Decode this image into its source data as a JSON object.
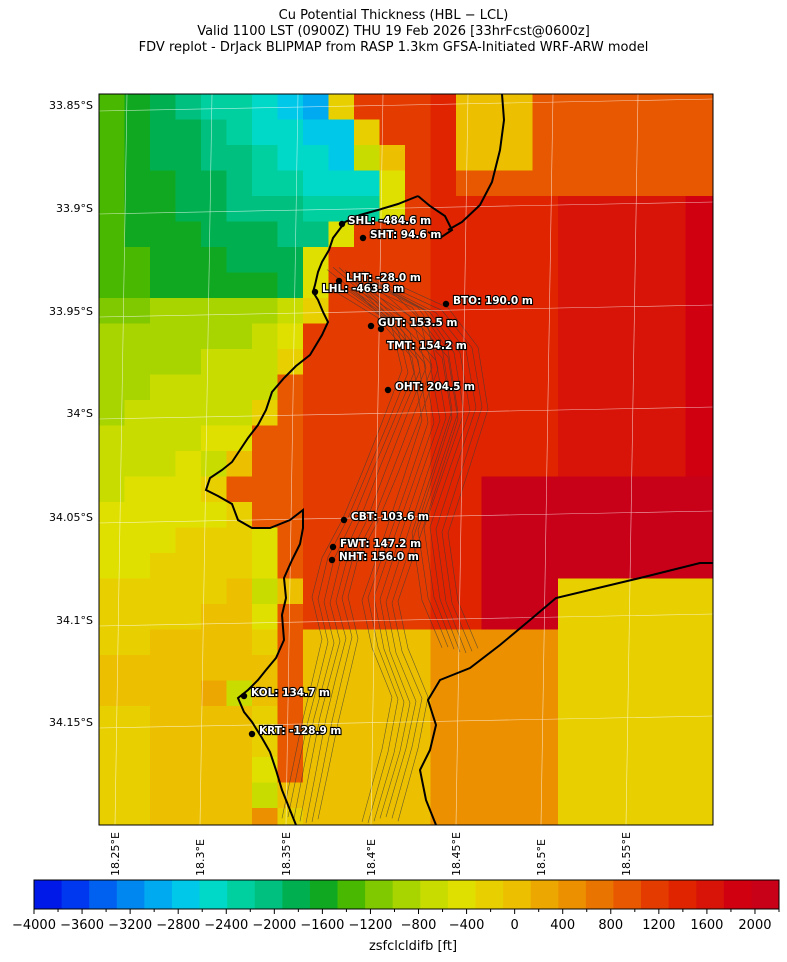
{
  "title": {
    "line1": "Cu Potential Thickness (HBL − LCL)",
    "line2": "Valid 1100 LST (0900Z) THU 19 Feb 2026 [33hrFcst@0600z]",
    "line3": "FDV replot - DrJack BLIPMAP from RASP 1.3km GFSA-Initiated WRF-ARW model"
  },
  "map": {
    "lat_labels": [
      "33.85°S",
      "33.9°S",
      "33.95°S",
      "34°S",
      "34.05°S",
      "34.1°S",
      "34.15°S"
    ],
    "lon_labels": [
      "18.25°E",
      "18.3°E",
      "18.35°E",
      "18.4°E",
      "18.45°E",
      "18.5°E",
      "18.55°E"
    ],
    "sites": [
      {
        "code": "SHL",
        "value": -484.6,
        "label": "SHL: -484.6 m"
      },
      {
        "code": "SHT",
        "value": 94.6,
        "label": "SHT: 94.6 m"
      },
      {
        "code": "LHT",
        "value": -28.0,
        "label": "LHT: -28.0 m"
      },
      {
        "code": "LHL",
        "value": -463.8,
        "label": "LHL: -463.8 m"
      },
      {
        "code": "BTO",
        "value": 190.0,
        "label": "BTO: 190.0 m"
      },
      {
        "code": "GUT",
        "value": 153.5,
        "label": "GUT: 153.5 m"
      },
      {
        "code": "TMT",
        "value": 154.2,
        "label": "TMT: 154.2 m"
      },
      {
        "code": "OHT",
        "value": 204.5,
        "label": "OHT: 204.5 m"
      },
      {
        "code": "CBT",
        "value": 103.6,
        "label": "CBT: 103.6 m"
      },
      {
        "code": "FWT",
        "value": 147.2,
        "label": "FWT: 147.2 m"
      },
      {
        "code": "NHT",
        "value": 156.0,
        "label": "NHT: 156.0 m"
      },
      {
        "code": "KOL",
        "value": 134.7,
        "label": "KOL: 134.7 m"
      },
      {
        "code": "KRT",
        "value": -128.9,
        "label": "KRT: -128.9 m"
      }
    ]
  },
  "colorbar": {
    "label": "zsfclcldifb [ft]",
    "min": -4000,
    "max": 2200,
    "step": 200,
    "ticks": [
      "−4000",
      "−3600",
      "−3200",
      "−2800",
      "−2400",
      "−2000",
      "−1600",
      "−1200",
      "−800",
      "−400",
      "0",
      "400",
      "800",
      "1200",
      "1600",
      "2000"
    ],
    "colors": [
      "#0018e8",
      "#0038f0",
      "#0060f0",
      "#0088f0",
      "#00aaf0",
      "#00c8e8",
      "#00d8c8",
      "#00d0a0",
      "#00c080",
      "#00b050",
      "#10a820",
      "#48b800",
      "#80c800",
      "#a8d400",
      "#c8dc00",
      "#e0e000",
      "#e8d000",
      "#ecc000",
      "#eca800",
      "#ec9000",
      "#ea7400",
      "#e85800",
      "#e43c00",
      "#e02400",
      "#d81408",
      "#d00010",
      "#c80018"
    ]
  }
}
